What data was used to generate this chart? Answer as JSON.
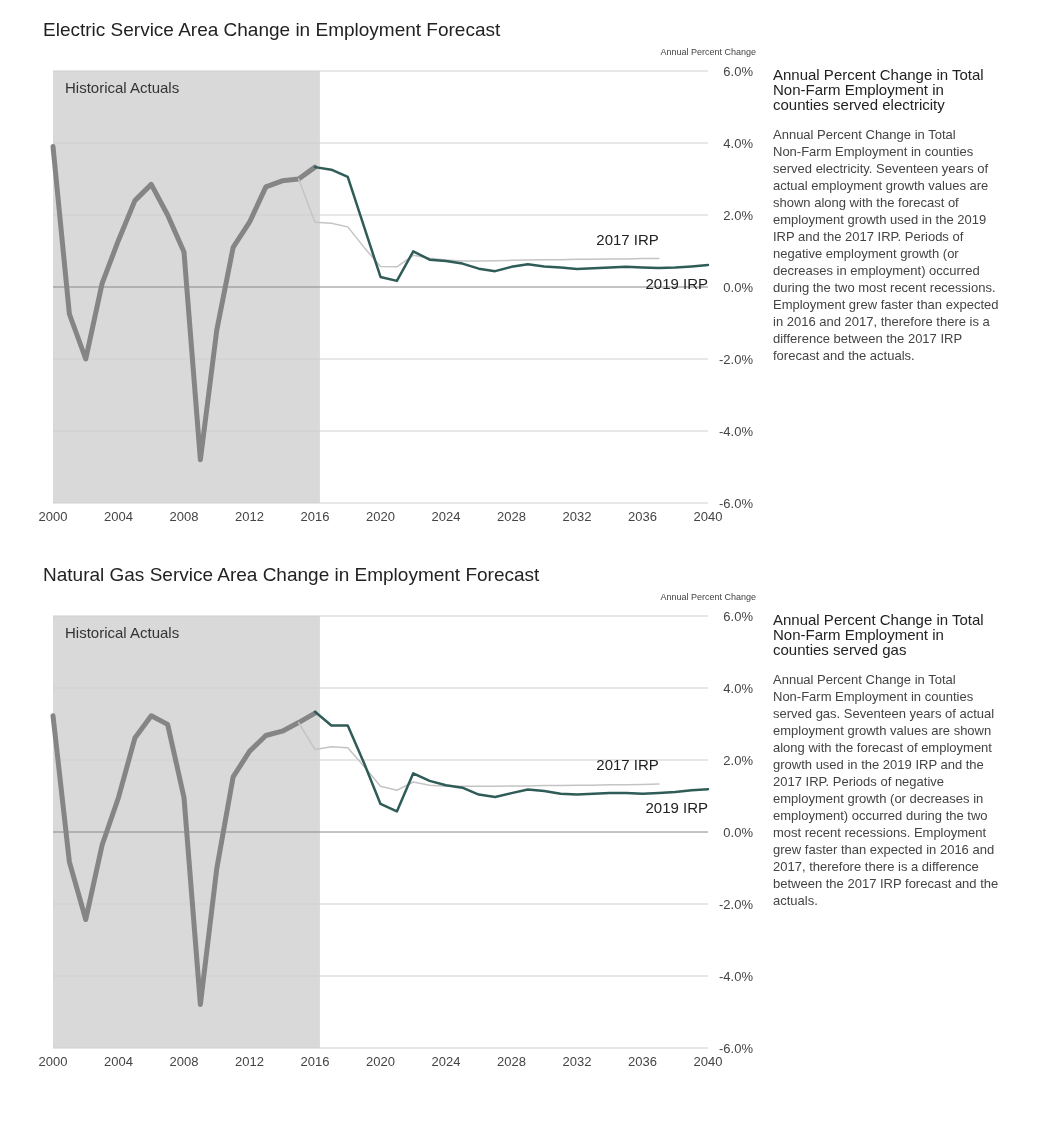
{
  "chart_data": [
    {
      "type": "line",
      "title": "Electric Service Area Change in Employment Forecast",
      "ylabel": "Annual Percent Change",
      "annotations": [
        "Annual Percent Change in Total Non-Farm Employment in counties served electricity",
        "Annual Percent Change in Total Non-Farm Employment in counties served electricity. Seventeen years of actual employment growth values are shown along with the forecast of employment growth used in the 2019 IRP and the 2017 IRP. Periods of negative employment growth (or decreases in employment) occurred during the two most recent recessions. Employment grew faster than expected in 2016 and 2017, therefore there is a difference between the 2017 IRP forecast and the actuals."
      ],
      "xlim": [
        2000,
        2040
      ],
      "xticks": [
        2000,
        2004,
        2008,
        2012,
        2016,
        2020,
        2024,
        2028,
        2032,
        2036,
        2040
      ],
      "ylim": [
        -6,
        6
      ],
      "yticks": [
        {
          "value": -6,
          "label": "-6.0%"
        },
        {
          "value": -4,
          "label": "-4.0%"
        },
        {
          "value": -2,
          "label": "-2.0%"
        },
        {
          "value": 0,
          "label": "0.0%"
        },
        {
          "value": 2,
          "label": "2.0%"
        },
        {
          "value": 4,
          "label": "4.0%"
        },
        {
          "value": 6,
          "label": "6.0%"
        }
      ],
      "grid": "y",
      "bands": [
        {
          "axis": "x",
          "from": 2000,
          "to": 2016.3,
          "label": "Historical Actuals",
          "color": "#d9d9d9"
        }
      ],
      "series": [
        {
          "color": "#858585",
          "x": [
            2000,
            2001,
            2002,
            2003,
            2004,
            2005,
            2006,
            2007,
            2008,
            2009,
            2010,
            2011,
            2012,
            2013,
            2014,
            2015,
            2016
          ],
          "values": [
            3.9,
            -0.75,
            -2.0,
            0.1,
            1.3,
            2.4,
            2.85,
            2.0,
            0.97,
            -4.8,
            -1.2,
            1.1,
            1.8,
            2.78,
            2.95,
            3.0,
            3.33
          ]
        },
        {
          "name": "2017 IRP",
          "color": "#c4c4c4",
          "x": [
            2015,
            2016,
            2017,
            2018,
            2019,
            2020,
            2021,
            2022,
            2023,
            2024,
            2025,
            2026,
            2027,
            2028,
            2029,
            2030,
            2031,
            2032,
            2033,
            2034,
            2035,
            2036,
            2037
          ],
          "values": [
            3.0,
            1.8,
            1.77,
            1.67,
            1.1,
            0.57,
            0.56,
            0.88,
            0.8,
            0.75,
            0.72,
            0.72,
            0.73,
            0.74,
            0.75,
            0.76,
            0.76,
            0.77,
            0.77,
            0.78,
            0.78,
            0.79,
            0.79
          ]
        },
        {
          "name": "2019 IRP",
          "color": "#2f5c57",
          "x": [
            2016,
            2017,
            2018,
            2019,
            2020,
            2021,
            2022,
            2023,
            2024,
            2025,
            2026,
            2027,
            2028,
            2029,
            2030,
            2031,
            2032,
            2033,
            2034,
            2035,
            2036,
            2037,
            2038,
            2039,
            2040
          ],
          "values": [
            3.33,
            3.26,
            3.06,
            1.67,
            0.28,
            0.17,
            0.99,
            0.76,
            0.72,
            0.65,
            0.51,
            0.44,
            0.56,
            0.63,
            0.57,
            0.54,
            0.5,
            0.52,
            0.54,
            0.56,
            0.54,
            0.53,
            0.54,
            0.57,
            0.61
          ]
        }
      ]
    },
    {
      "type": "line",
      "title": "Natural Gas Service Area Change in Employment Forecast",
      "ylabel": "Annual Percent Change",
      "annotations": [
        "Annual Percent Change in Total Non-Farm Employment in counties served gas",
        "Annual Percent Change in Total Non-Farm Employment in counties served gas. Seventeen years of actual employment growth values are shown along with the forecast of employment growth used in the 2019 IRP and the 2017 IRP. Periods of negative employment growth (or decreases in employment) occurred during the two most recent recessions. Employment grew faster than expected in 2016 and 2017, therefore there is a difference between the 2017 IRP forecast and the actuals."
      ],
      "xlim": [
        2000,
        2040
      ],
      "xticks": [
        2000,
        2004,
        2008,
        2012,
        2016,
        2020,
        2024,
        2028,
        2032,
        2036,
        2040
      ],
      "ylim": [
        -6,
        6
      ],
      "yticks": [
        {
          "value": -6,
          "label": "-6.0%"
        },
        {
          "value": -4,
          "label": "-4.0%"
        },
        {
          "value": -2,
          "label": "-2.0%"
        },
        {
          "value": 0,
          "label": "0.0%"
        },
        {
          "value": 2,
          "label": "2.0%"
        },
        {
          "value": 4,
          "label": "4.0%"
        },
        {
          "value": 6,
          "label": "6.0%"
        }
      ],
      "grid": "y",
      "bands": [
        {
          "axis": "x",
          "from": 2000,
          "to": 2016.3,
          "label": "Historical Actuals",
          "color": "#d9d9d9"
        }
      ],
      "series": [
        {
          "color": "#858585",
          "x": [
            2000,
            2001,
            2002,
            2003,
            2004,
            2005,
            2006,
            2007,
            2008,
            2009,
            2010,
            2011,
            2012,
            2013,
            2014,
            2015,
            2016
          ],
          "values": [
            3.23,
            -0.83,
            -2.43,
            -0.36,
            0.96,
            2.61,
            3.23,
            2.99,
            0.96,
            -4.79,
            -1.02,
            1.53,
            2.24,
            2.68,
            2.8,
            3.04,
            3.3
          ]
        },
        {
          "name": "2017 IRP",
          "color": "#c4c4c4",
          "x": [
            2015,
            2016,
            2017,
            2018,
            2019,
            2020,
            2021,
            2022,
            2023,
            2024,
            2025,
            2026,
            2027,
            2028,
            2029,
            2030,
            2031,
            2032,
            2033,
            2034,
            2035,
            2036,
            2037
          ],
          "values": [
            3.04,
            2.29,
            2.37,
            2.34,
            1.82,
            1.27,
            1.16,
            1.39,
            1.3,
            1.27,
            1.27,
            1.27,
            1.27,
            1.28,
            1.28,
            1.29,
            1.29,
            1.3,
            1.3,
            1.31,
            1.31,
            1.32,
            1.33
          ]
        },
        {
          "name": "2019 IRP",
          "color": "#2f5c57",
          "x": [
            2016,
            2017,
            2018,
            2019,
            2020,
            2021,
            2022,
            2023,
            2024,
            2025,
            2026,
            2027,
            2028,
            2029,
            2030,
            2031,
            2032,
            2033,
            2034,
            2035,
            2036,
            2037,
            2038,
            2039,
            2040
          ],
          "values": [
            3.34,
            2.96,
            2.96,
            1.91,
            0.78,
            0.57,
            1.63,
            1.42,
            1.3,
            1.23,
            1.04,
            0.97,
            1.08,
            1.18,
            1.14,
            1.06,
            1.04,
            1.06,
            1.08,
            1.08,
            1.06,
            1.08,
            1.11,
            1.16,
            1.19
          ]
        }
      ]
    }
  ]
}
